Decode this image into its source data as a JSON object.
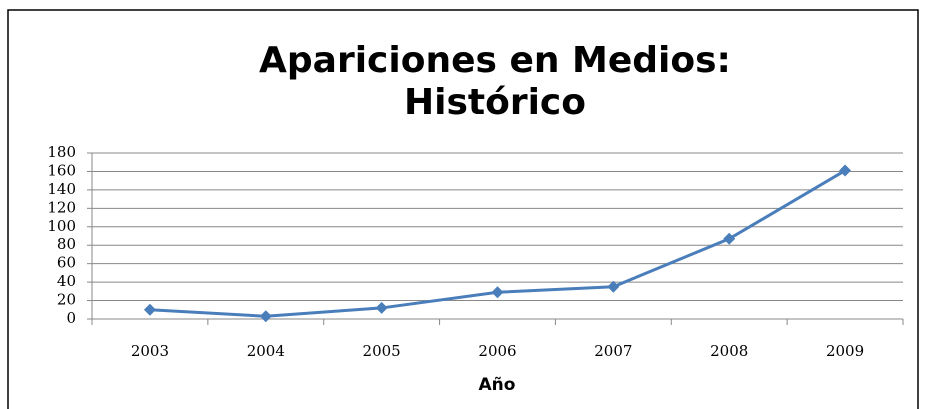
{
  "chart_data": {
    "type": "line",
    "title": [
      "Apariciones en Medios:",
      "Histórico"
    ],
    "x_label": "Año",
    "categories": [
      "2003",
      "2004",
      "2005",
      "2006",
      "2007",
      "2008",
      "2009"
    ],
    "series": [
      {
        "color": "#4a7ebb",
        "values": [
          10,
          3,
          12,
          29,
          35,
          87,
          161
        ]
      }
    ],
    "ylim": [
      0,
      180
    ],
    "yticks": [
      0,
      20,
      40,
      60,
      80,
      100,
      120,
      140,
      160,
      180
    ],
    "grid": true
  }
}
